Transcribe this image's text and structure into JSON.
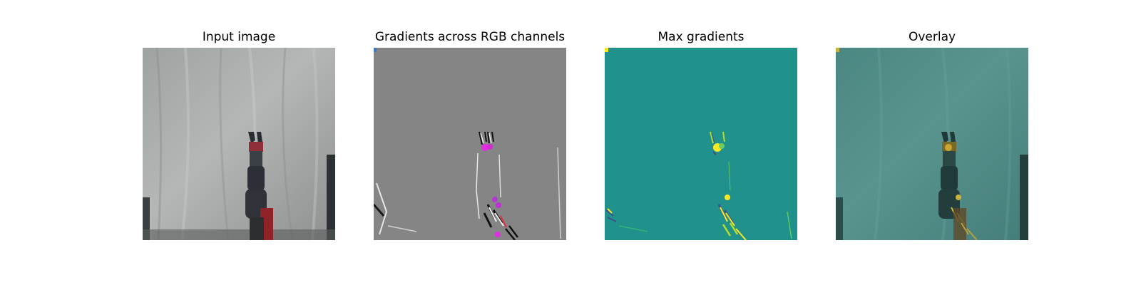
{
  "panels": [
    {
      "title": "Input image",
      "image": "robot-arm-photo",
      "colors": {
        "background": "#a4a9a7",
        "arm_dark": "#2c2f36",
        "gripper": "#8e2f3a"
      }
    },
    {
      "title": "Gradients across RGB channels",
      "image": "rgb-gradient-map",
      "colors": {
        "background": "#858585",
        "highlight": "#e12ee0"
      }
    },
    {
      "title": "Max gradients",
      "image": "max-gradient-heatmap",
      "colors": {
        "background": "#21918c",
        "high": "#fde725"
      }
    },
    {
      "title": "Overlay",
      "image": "gradient-overlay",
      "colors": {
        "background": "#4f8a86",
        "high": "#c9b341"
      }
    }
  ]
}
